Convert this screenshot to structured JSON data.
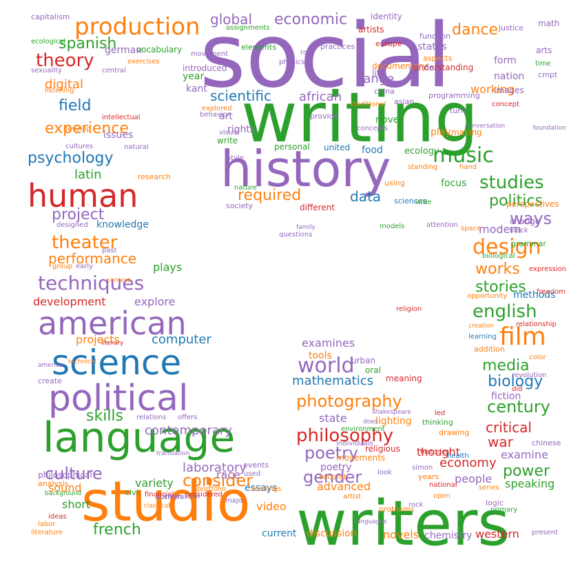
{
  "palette": {
    "blue": "#1f77b4",
    "orange": "#ff7f0e",
    "green": "#2ca02c",
    "red": "#d62728",
    "purple": "#9467bd"
  },
  "words": [
    {
      "text": "social",
      "color": "purple"
    },
    {
      "text": "writing",
      "color": "green"
    },
    {
      "text": "history",
      "color": "purple"
    },
    {
      "text": "writers",
      "color": "green"
    },
    {
      "text": "studio",
      "color": "orange"
    },
    {
      "text": "language",
      "color": "green"
    },
    {
      "text": "political",
      "color": "purple"
    },
    {
      "text": "science",
      "color": "blue"
    },
    {
      "text": "american",
      "color": "purple"
    },
    {
      "text": "human",
      "color": "red"
    },
    {
      "text": "production",
      "color": "orange"
    },
    {
      "text": "music",
      "color": "green"
    },
    {
      "text": "film",
      "color": "orange"
    },
    {
      "text": "design",
      "color": "orange"
    },
    {
      "text": "world",
      "color": "purple"
    },
    {
      "text": "techniques",
      "color": "purple"
    },
    {
      "text": "photography",
      "color": "orange"
    },
    {
      "text": "philosophy",
      "color": "red"
    },
    {
      "text": "psychology",
      "color": "blue"
    },
    {
      "text": "theater",
      "color": "orange"
    },
    {
      "text": "experience",
      "color": "orange"
    },
    {
      "text": "culture",
      "color": "purple"
    },
    {
      "text": "gender",
      "color": "purple"
    },
    {
      "text": "english",
      "color": "green"
    },
    {
      "text": "theory",
      "color": "red"
    },
    {
      "text": "spanish",
      "color": "green"
    },
    {
      "text": "dance",
      "color": "orange"
    },
    {
      "text": "economic",
      "color": "purple"
    },
    {
      "text": "global",
      "color": "purple"
    },
    {
      "text": "required",
      "color": "orange"
    },
    {
      "text": "studies",
      "color": "green"
    },
    {
      "text": "politics",
      "color": "green"
    },
    {
      "text": "project",
      "color": "purple"
    },
    {
      "text": "field",
      "color": "blue"
    },
    {
      "text": "performance",
      "color": "orange"
    },
    {
      "text": "consider",
      "color": "orange"
    },
    {
      "text": "french",
      "color": "green"
    },
    {
      "text": "skills",
      "color": "green"
    },
    {
      "text": "mathematics",
      "color": "blue"
    },
    {
      "text": "biology",
      "color": "blue"
    },
    {
      "text": "media",
      "color": "green"
    },
    {
      "text": "century",
      "color": "green"
    },
    {
      "text": "poetry",
      "color": "purple"
    },
    {
      "text": "ways",
      "color": "purple"
    },
    {
      "text": "works",
      "color": "orange"
    },
    {
      "text": "stories",
      "color": "green"
    },
    {
      "text": "data",
      "color": "blue"
    },
    {
      "text": "scientific",
      "color": "blue"
    },
    {
      "text": "latin",
      "color": "green"
    },
    {
      "text": "digital",
      "color": "orange"
    },
    {
      "text": "african",
      "color": "purple"
    },
    {
      "text": "range",
      "color": "purple"
    },
    {
      "text": "laboratory",
      "color": "purple"
    },
    {
      "text": "computer",
      "color": "blue"
    },
    {
      "text": "contemporary",
      "color": "purple"
    },
    {
      "text": "power",
      "color": "green"
    },
    {
      "text": "economy",
      "color": "red"
    },
    {
      "text": "critical",
      "color": "red"
    },
    {
      "text": "war",
      "color": "red"
    },
    {
      "text": "examine",
      "color": "purple"
    },
    {
      "text": "speaking",
      "color": "green"
    },
    {
      "text": "development",
      "color": "red"
    },
    {
      "text": "explore",
      "color": "purple"
    },
    {
      "text": "projects",
      "color": "orange"
    },
    {
      "text": "examines",
      "color": "purple"
    },
    {
      "text": "state",
      "color": "purple"
    },
    {
      "text": "sound",
      "color": "orange"
    },
    {
      "text": "short",
      "color": "green"
    },
    {
      "text": "video",
      "color": "orange"
    },
    {
      "text": "advanced",
      "color": "orange"
    },
    {
      "text": "thought",
      "color": "red"
    },
    {
      "text": "people",
      "color": "purple"
    },
    {
      "text": "race",
      "color": "purple"
    },
    {
      "text": "novels",
      "color": "orange"
    },
    {
      "text": "discussion",
      "color": "orange"
    },
    {
      "text": "current",
      "color": "blue"
    },
    {
      "text": "western",
      "color": "red"
    },
    {
      "text": "chemistry",
      "color": "purple"
    },
    {
      "text": "german",
      "color": "purple"
    },
    {
      "text": "knowledge",
      "color": "blue"
    },
    {
      "text": "art",
      "color": "purple"
    },
    {
      "text": "rights",
      "color": "purple"
    },
    {
      "text": "novel",
      "color": "green"
    },
    {
      "text": "food",
      "color": "blue"
    },
    {
      "text": "focus",
      "color": "green"
    },
    {
      "text": "working",
      "color": "orange"
    },
    {
      "text": "modern",
      "color": "purple"
    },
    {
      "text": "plays",
      "color": "green"
    },
    {
      "text": "methods",
      "color": "blue"
    },
    {
      "text": "issues",
      "color": "purple"
    },
    {
      "text": "variety",
      "color": "green"
    },
    {
      "text": "essays",
      "color": "blue"
    },
    {
      "text": "year",
      "color": "green"
    },
    {
      "text": "kant",
      "color": "purple"
    },
    {
      "text": "united",
      "color": "blue"
    },
    {
      "text": "fiction",
      "color": "purple"
    },
    {
      "text": "lighting",
      "color": "orange"
    },
    {
      "text": "tools",
      "color": "orange"
    },
    {
      "text": "oral",
      "color": "green"
    },
    {
      "text": "meaning",
      "color": "red"
    },
    {
      "text": "urban",
      "color": "purple"
    },
    {
      "text": "religious",
      "color": "red"
    },
    {
      "text": "poetry",
      "color": "purple"
    },
    {
      "text": "states",
      "color": "purple"
    },
    {
      "text": "form",
      "color": "purple"
    },
    {
      "text": "nation",
      "color": "purple"
    },
    {
      "text": "arts",
      "color": "purple"
    },
    {
      "text": "math",
      "color": "purple"
    },
    {
      "text": "identity",
      "color": "purple"
    },
    {
      "text": "artists",
      "color": "red"
    },
    {
      "text": "documentary",
      "color": "orange"
    },
    {
      "text": "understanding",
      "color": "red"
    },
    {
      "text": "images",
      "color": "purple"
    },
    {
      "text": "concept",
      "color": "red"
    },
    {
      "text": "play",
      "color": "orange"
    },
    {
      "text": "making",
      "color": "orange"
    },
    {
      "text": "perspectives",
      "color": "orange"
    },
    {
      "text": "change",
      "color": "purple"
    },
    {
      "text": "sciences",
      "color": "blue"
    },
    {
      "text": "different",
      "color": "red"
    },
    {
      "text": "society",
      "color": "purple"
    },
    {
      "text": "ecology",
      "color": "green"
    },
    {
      "text": "personal",
      "color": "green"
    },
    {
      "text": "write",
      "color": "green"
    },
    {
      "text": "introduced",
      "color": "purple"
    },
    {
      "text": "elements",
      "color": "green"
    },
    {
      "text": "assignments",
      "color": "green"
    },
    {
      "text": "vocabulary",
      "color": "green"
    },
    {
      "text": "capitalism",
      "color": "purple"
    },
    {
      "text": "ecological",
      "color": "green"
    },
    {
      "text": "sexuality",
      "color": "purple"
    },
    {
      "text": "listening",
      "color": "orange"
    },
    {
      "text": "central",
      "color": "purple"
    },
    {
      "text": "exercises",
      "color": "orange"
    },
    {
      "text": "intellectual",
      "color": "red"
    },
    {
      "text": "develop",
      "color": "orange"
    },
    {
      "text": "cultures",
      "color": "purple"
    },
    {
      "text": "natural",
      "color": "purple"
    },
    {
      "text": "research",
      "color": "orange"
    },
    {
      "text": "designed",
      "color": "purple"
    },
    {
      "text": "past",
      "color": "purple"
    },
    {
      "text": "group",
      "color": "orange"
    },
    {
      "text": "early",
      "color": "purple"
    },
    {
      "text": "relations",
      "color": "purple"
    },
    {
      "text": "offers",
      "color": "purple"
    },
    {
      "text": "philosophical",
      "color": "purple"
    },
    {
      "text": "analysis",
      "color": "orange"
    },
    {
      "text": "civil",
      "color": "green"
    },
    {
      "text": "authors",
      "color": "purple"
    },
    {
      "text": "create",
      "color": "purple"
    },
    {
      "text": "financial",
      "color": "red"
    },
    {
      "text": "considered",
      "color": "red"
    },
    {
      "text": "literature",
      "color": "orange"
    },
    {
      "text": "ideas",
      "color": "red"
    },
    {
      "text": "labor",
      "color": "orange"
    },
    {
      "text": "background",
      "color": "green"
    },
    {
      "text": "events",
      "color": "purple"
    },
    {
      "text": "used",
      "color": "purple"
    },
    {
      "text": "readings",
      "color": "orange"
    },
    {
      "text": "movements",
      "color": "orange"
    },
    {
      "text": "second",
      "color": "orange"
    },
    {
      "text": "years",
      "color": "orange"
    },
    {
      "text": "problems",
      "color": "orange"
    },
    {
      "text": "rock",
      "color": "purple"
    },
    {
      "text": "series",
      "color": "orange"
    },
    {
      "text": "logic",
      "color": "purple"
    },
    {
      "text": "drawing",
      "color": "orange"
    },
    {
      "text": "health",
      "color": "blue"
    },
    {
      "text": "thinking",
      "color": "green"
    },
    {
      "text": "chinese",
      "color": "purple"
    },
    {
      "text": "grammar",
      "color": "green"
    },
    {
      "text": "biological",
      "color": "green"
    },
    {
      "text": "addition",
      "color": "orange"
    },
    {
      "text": "learning",
      "color": "blue"
    },
    {
      "text": "opportunity",
      "color": "orange"
    },
    {
      "text": "color",
      "color": "orange"
    },
    {
      "text": "revolution",
      "color": "purple"
    },
    {
      "text": "did",
      "color": "red"
    },
    {
      "text": "led",
      "color": "red"
    },
    {
      "text": "look",
      "color": "purple"
    },
    {
      "text": "environment",
      "color": "green"
    },
    {
      "text": "individuals",
      "color": "purple"
    },
    {
      "text": "shakespeare",
      "color": "purple"
    },
    {
      "text": "does",
      "color": "purple"
    },
    {
      "text": "europe",
      "color": "red"
    },
    {
      "text": "china",
      "color": "purple"
    },
    {
      "text": "asian",
      "color": "purple"
    },
    {
      "text": "life",
      "color": "purple"
    },
    {
      "text": "aspects",
      "color": "orange"
    },
    {
      "text": "final",
      "color": "purple"
    },
    {
      "text": "function",
      "color": "purple"
    },
    {
      "text": "programming",
      "color": "purple"
    },
    {
      "text": "provide",
      "color": "purple"
    },
    {
      "text": "explored",
      "color": "orange"
    },
    {
      "text": "visual",
      "color": "purple"
    },
    {
      "text": "style",
      "color": "purple"
    },
    {
      "text": "using",
      "color": "orange"
    },
    {
      "text": "wide",
      "color": "green"
    },
    {
      "text": "space",
      "color": "orange"
    },
    {
      "text": "movement",
      "color": "purple"
    },
    {
      "text": "physics",
      "color": "purple"
    },
    {
      "text": "role",
      "color": "purple"
    },
    {
      "text": "practices",
      "color": "purple"
    },
    {
      "text": "traditional",
      "color": "orange"
    },
    {
      "text": "standing",
      "color": "orange"
    },
    {
      "text": "turn",
      "color": "purple"
    },
    {
      "text": "cmpt",
      "color": "purple"
    },
    {
      "text": "justice",
      "color": "purple"
    },
    {
      "text": "time",
      "color": "green"
    },
    {
      "text": "behavior",
      "color": "purple"
    },
    {
      "text": "concepts",
      "color": "purple"
    },
    {
      "text": "hand",
      "color": "orange"
    },
    {
      "text": "religion",
      "color": "red"
    },
    {
      "text": "histories",
      "color": "red"
    },
    {
      "text": "portfolio",
      "color": "orange"
    },
    {
      "text": "major",
      "color": "purple"
    },
    {
      "text": "information",
      "color": "purple"
    },
    {
      "text": "translation",
      "color": "purple"
    },
    {
      "text": "context",
      "color": "orange"
    },
    {
      "text": "classical",
      "color": "orange"
    },
    {
      "text": "open",
      "color": "orange"
    },
    {
      "text": "primary",
      "color": "green"
    },
    {
      "text": "present",
      "color": "purple"
    },
    {
      "text": "expression",
      "color": "red"
    },
    {
      "text": "freedom",
      "color": "red"
    },
    {
      "text": "relationship",
      "color": "red"
    },
    {
      "text": "creation",
      "color": "orange"
    },
    {
      "text": "questions",
      "color": "purple"
    },
    {
      "text": "attention",
      "color": "purple"
    },
    {
      "text": "black",
      "color": "purple"
    },
    {
      "text": "national",
      "color": "red"
    },
    {
      "text": "artist",
      "color": "orange"
    },
    {
      "text": "nature",
      "color": "green"
    },
    {
      "text": "models",
      "color": "green"
    },
    {
      "text": "foundation",
      "color": "purple"
    },
    {
      "text": "conversation",
      "color": "purple"
    },
    {
      "text": "literary",
      "color": "red"
    },
    {
      "text": "technical",
      "color": "orange"
    },
    {
      "text": "america",
      "color": "purple"
    },
    {
      "text": "family",
      "color": "purple"
    },
    {
      "text": "simon",
      "color": "purple"
    },
    {
      "text": "languages",
      "color": "purple"
    }
  ]
}
